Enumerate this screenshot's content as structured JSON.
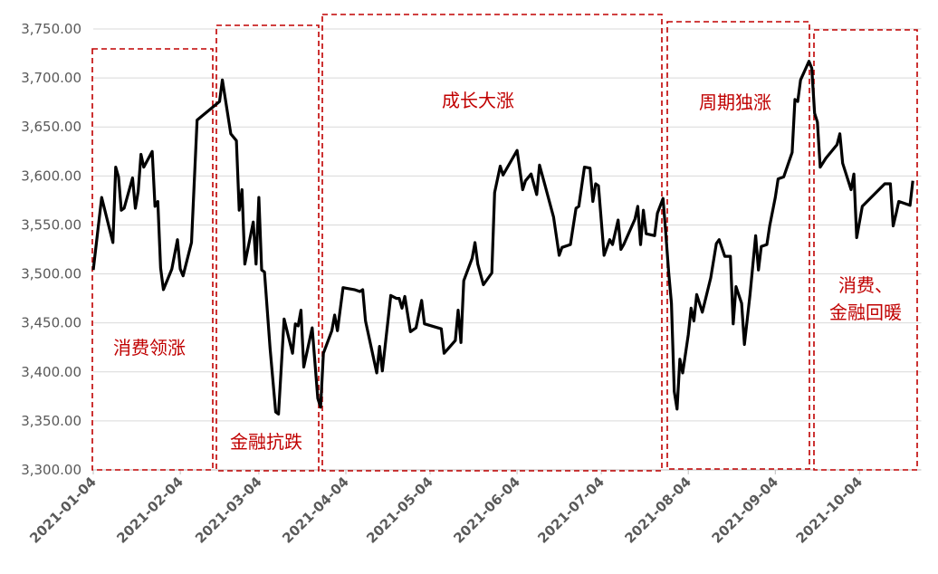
{
  "chart_data": {
    "type": "line",
    "color": "#000000",
    "x": [
      "2021-01-04",
      "2021-01-07",
      "2021-01-11",
      "2021-01-12",
      "2021-01-13",
      "2021-01-14",
      "2021-01-15",
      "2021-01-18",
      "2021-01-19",
      "2021-01-20",
      "2021-01-21",
      "2021-01-22",
      "2021-01-25",
      "2021-01-26",
      "2021-01-27",
      "2021-01-28",
      "2021-01-29",
      "2021-02-01",
      "2021-02-03",
      "2021-02-04",
      "2021-02-05",
      "2021-02-08",
      "2021-02-10",
      "2021-02-18",
      "2021-02-19",
      "2021-02-22",
      "2021-02-24",
      "2021-02-25",
      "2021-02-26",
      "2021-02-27",
      "2021-03-02",
      "2021-03-03",
      "2021-03-04",
      "2021-03-05",
      "2021-03-06",
      "2021-03-08",
      "2021-03-10",
      "2021-03-11",
      "2021-03-13",
      "2021-03-16",
      "2021-03-17",
      "2021-03-18",
      "2021-03-19",
      "2021-03-20",
      "2021-03-23",
      "2021-03-25",
      "2021-03-26",
      "2021-03-27",
      "2021-03-30",
      "2021-03-31",
      "2021-04-01",
      "2021-04-03",
      "2021-04-07",
      "2021-04-09",
      "2021-04-10",
      "2021-04-11",
      "2021-04-15",
      "2021-04-16",
      "2021-04-17",
      "2021-04-20",
      "2021-04-22",
      "2021-04-23",
      "2021-04-24",
      "2021-04-25",
      "2021-04-27",
      "2021-04-29",
      "2021-05-01",
      "2021-05-02",
      "2021-05-08",
      "2021-05-09",
      "2021-05-13",
      "2021-05-14",
      "2021-05-15",
      "2021-05-16",
      "2021-05-19",
      "2021-05-20",
      "2021-05-21",
      "2021-05-23",
      "2021-05-26",
      "2021-05-27",
      "2021-05-29",
      "2021-05-30",
      "2021-06-02",
      "2021-06-04",
      "2021-06-06",
      "2021-06-07",
      "2021-06-09",
      "2021-06-11",
      "2021-06-12",
      "2021-06-14",
      "2021-06-17",
      "2021-06-19",
      "2021-06-20",
      "2021-06-23",
      "2021-06-25",
      "2021-06-26",
      "2021-06-28",
      "2021-06-30",
      "2021-07-01",
      "2021-07-02",
      "2021-07-03",
      "2021-07-05",
      "2021-07-07",
      "2021-07-08",
      "2021-07-10",
      "2021-07-11",
      "2021-07-12",
      "2021-07-16",
      "2021-07-17",
      "2021-07-18",
      "2021-07-19",
      "2021-07-20",
      "2021-07-23",
      "2021-07-24",
      "2021-07-26",
      "2021-07-27",
      "2021-07-28",
      "2021-07-29",
      "2021-07-30",
      "2021-07-31",
      "2021-08-01",
      "2021-08-02",
      "2021-08-04",
      "2021-08-05",
      "2021-08-06",
      "2021-08-07",
      "2021-08-09",
      "2021-08-12",
      "2021-08-14",
      "2021-08-15",
      "2021-08-17",
      "2021-08-19",
      "2021-08-20",
      "2021-08-21",
      "2021-08-23",
      "2021-08-24",
      "2021-08-26",
      "2021-08-28",
      "2021-08-29",
      "2021-08-30",
      "2021-09-01",
      "2021-09-02",
      "2021-09-04",
      "2021-09-05",
      "2021-09-07",
      "2021-09-10",
      "2021-09-11",
      "2021-09-12",
      "2021-09-13",
      "2021-09-16",
      "2021-09-17",
      "2021-09-18",
      "2021-09-19",
      "2021-09-20",
      "2021-09-22",
      "2021-09-26",
      "2021-09-27",
      "2021-09-28",
      "2021-10-01",
      "2021-10-02",
      "2021-10-03",
      "2021-10-05",
      "2021-10-13",
      "2021-10-15",
      "2021-10-16",
      "2021-10-17",
      "2021-10-18",
      "2021-10-20",
      "2021-10-22",
      "2021-10-23"
    ],
    "values": [
      3504,
      3578,
      3532,
      3609,
      3599,
      3565,
      3567,
      3598,
      3567,
      3584,
      3622,
      3609,
      3625,
      3569,
      3574,
      3506,
      3484,
      3505,
      3535,
      3505,
      3498,
      3532,
      3657,
      3676,
      3698,
      3643,
      3636,
      3565,
      3586,
      3510,
      3553,
      3510,
      3578,
      3504,
      3502,
      3424,
      3359,
      3357,
      3454,
      3419,
      3449,
      3447,
      3463,
      3405,
      3445,
      3373,
      3364,
      3419,
      3442,
      3458,
      3442,
      3486,
      3484,
      3482,
      3484,
      3452,
      3399,
      3426,
      3401,
      3478,
      3475,
      3475,
      3465,
      3477,
      3441,
      3445,
      3473,
      3449,
      3444,
      3419,
      3432,
      3463,
      3430,
      3493,
      3516,
      3532,
      3510,
      3489,
      3501,
      3583,
      3610,
      3601,
      3616,
      3626,
      3586,
      3595,
      3602,
      3581,
      3611,
      3590,
      3558,
      3519,
      3527,
      3530,
      3567,
      3569,
      3609,
      3608,
      3574,
      3592,
      3590,
      3519,
      3535,
      3530,
      3555,
      3525,
      3530,
      3556,
      3569,
      3530,
      3565,
      3541,
      3539,
      3562,
      3577,
      3541,
      3502,
      3470,
      3380,
      3362,
      3413,
      3399,
      3438,
      3465,
      3452,
      3479,
      3461,
      3496,
      3531,
      3535,
      3518,
      3518,
      3449,
      3487,
      3470,
      3428,
      3479,
      3539,
      3504,
      3528,
      3530,
      3549,
      3578,
      3597,
      3599,
      3624,
      3678,
      3676,
      3698,
      3717,
      3710,
      3664,
      3655,
      3609,
      3618,
      3632,
      3643,
      3613,
      3586,
      3602,
      3537,
      3569,
      3592,
      3592,
      3549,
      3561,
      3574,
      3572,
      3570,
      3595
    ],
    "xlim": [
      "2021-01-04",
      "2021-10-26"
    ],
    "xticks": [
      "2021-01-04",
      "2021-02-04",
      "2021-03-04",
      "2021-04-04",
      "2021-05-04",
      "2021-06-04",
      "2021-07-04",
      "2021-08-04",
      "2021-09-04",
      "2021-10-04"
    ],
    "ylim": [
      3300,
      3750
    ],
    "yticks": [
      {
        "value": 3300,
        "label": "3,300.00"
      },
      {
        "value": 3350,
        "label": "3,350.00"
      },
      {
        "value": 3400,
        "label": "3,400.00"
      },
      {
        "value": 3450,
        "label": "3,450.00"
      },
      {
        "value": 3500,
        "label": "3,500.00"
      },
      {
        "value": 3550,
        "label": "3,550.00"
      },
      {
        "value": 3600,
        "label": "3,600.00"
      },
      {
        "value": 3650,
        "label": "3,650.00"
      },
      {
        "value": 3700,
        "label": "3,700.00"
      },
      {
        "value": 3750,
        "label": "3,750.00"
      }
    ],
    "grid": true,
    "annotations": [
      {
        "lines": [
          "消费领涨"
        ]
      },
      {
        "lines": [
          "金融抗跌"
        ]
      },
      {
        "lines": [
          "成长大涨"
        ]
      },
      {
        "lines": [
          "周期独涨"
        ]
      },
      {
        "lines": [
          "消费、",
          "金融回暖"
        ]
      }
    ]
  }
}
